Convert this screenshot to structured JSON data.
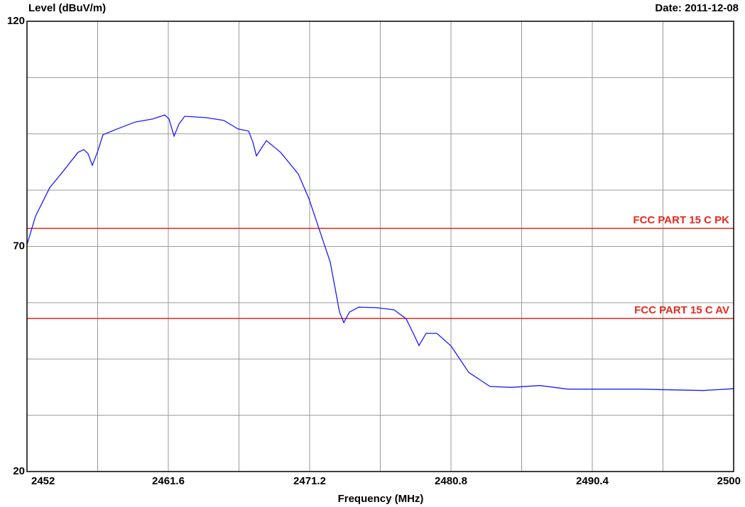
{
  "chart_data": {
    "type": "line",
    "y_label": "Level (dBuV/m)",
    "date_label": "Date: 2011-12-08",
    "x_label": "Frequency (MHz)",
    "xlim": [
      2452,
      2500
    ],
    "xticks": [
      2452,
      2461.6,
      2471.2,
      2480.8,
      2490.4,
      2500
    ],
    "minor_xticks": [
      2456.8,
      2466.4,
      2476,
      2485.6,
      2495.2
    ],
    "ylim": [
      20,
      120
    ],
    "yticks": [
      20,
      70,
      120
    ],
    "minor_yticks": [
      32.5,
      45,
      57.5,
      82.5,
      95,
      107.5
    ],
    "grid": true,
    "color": "#1a1aff",
    "x": [
      2452,
      2452.58,
      2453.54,
      2454.51,
      2455.47,
      2455.86,
      2456.15,
      2456.44,
      2456.78,
      2457.16,
      2458.13,
      2459.33,
      2460.54,
      2461.36,
      2461.65,
      2461.99,
      2462.33,
      2462.71,
      2464.16,
      2465.36,
      2466.33,
      2467.05,
      2467.34,
      2467.58,
      2468.26,
      2469.22,
      2470.43,
      2471.15,
      2471.88,
      2472.6,
      2473.23,
      2473.52,
      2473.9,
      2474.53,
      2475.74,
      2476.94,
      2477.76,
      2478.24,
      2478.63,
      2479.11,
      2479.84,
      2480.8,
      2482.01,
      2483.45,
      2484.9,
      2486.83,
      2488.76,
      2493.58,
      2497.92,
      2500
    ],
    "values": [
      70.4,
      76.7,
      83.0,
      86.9,
      90.9,
      91.5,
      90.6,
      88.0,
      90.9,
      94.8,
      96.1,
      97.6,
      98.3,
      99.2,
      98.3,
      94.5,
      97.2,
      98.9,
      98.6,
      98.0,
      96.1,
      95.6,
      93.2,
      90.1,
      93.5,
      90.9,
      86.1,
      80.6,
      73.5,
      66.5,
      55.4,
      53.1,
      55.4,
      56.5,
      56.4,
      55.9,
      53.9,
      50.7,
      48.0,
      50.7,
      50.7,
      47.9,
      42.0,
      38.9,
      38.7,
      39.1,
      38.3,
      38.3,
      38.0,
      38.4
    ],
    "limit_lines": [
      {
        "label": "FCC PART 15 C PK",
        "value": 74,
        "color": "#e8281e"
      },
      {
        "label": "FCC PART 15 C AV",
        "value": 54,
        "color": "#e8281e"
      }
    ]
  }
}
